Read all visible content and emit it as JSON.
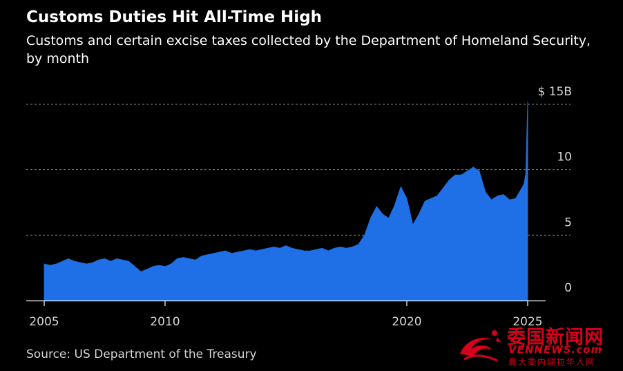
{
  "chart_data": {
    "type": "area",
    "title": "Customs Duties Hit All-Time High",
    "subtitle": "Customs and certain excise taxes collected by the Department of Homeland Security, by month",
    "source": "Source: US Department of the Treasury",
    "xlabel": "",
    "ylabel": "",
    "y_unit": "billion USD",
    "ylim": [
      0,
      15
    ],
    "xlim": [
      2005.0,
      2025.0
    ],
    "y_ticks": [
      {
        "value": 15,
        "label": "$ 15B"
      },
      {
        "value": 10,
        "label": "10"
      },
      {
        "value": 5,
        "label": "5"
      },
      {
        "value": 0,
        "label": "0"
      }
    ],
    "x_ticks": [
      {
        "value": 2005,
        "label": "2005"
      },
      {
        "value": 2010,
        "label": "2010"
      },
      {
        "value": 2020,
        "label": "2020"
      },
      {
        "value": 2025,
        "label": "2025"
      }
    ],
    "grid": true,
    "series": [
      {
        "name": "Customs and certain excise taxes",
        "color": "#1f6fe6",
        "points": [
          [
            2005.0,
            2.8
          ],
          [
            2005.25,
            2.7
          ],
          [
            2005.5,
            2.8
          ],
          [
            2005.75,
            3.0
          ],
          [
            2006.0,
            3.2
          ],
          [
            2006.25,
            3.0
          ],
          [
            2006.5,
            2.9
          ],
          [
            2006.75,
            2.8
          ],
          [
            2007.0,
            2.9
          ],
          [
            2007.25,
            3.1
          ],
          [
            2007.5,
            3.2
          ],
          [
            2007.75,
            3.0
          ],
          [
            2008.0,
            3.2
          ],
          [
            2008.25,
            3.1
          ],
          [
            2008.5,
            3.0
          ],
          [
            2008.75,
            2.6
          ],
          [
            2009.0,
            2.2
          ],
          [
            2009.25,
            2.4
          ],
          [
            2009.5,
            2.6
          ],
          [
            2009.75,
            2.7
          ],
          [
            2010.0,
            2.6
          ],
          [
            2010.25,
            2.8
          ],
          [
            2010.5,
            3.2
          ],
          [
            2010.75,
            3.3
          ],
          [
            2011.0,
            3.2
          ],
          [
            2011.25,
            3.1
          ],
          [
            2011.5,
            3.4
          ],
          [
            2011.75,
            3.5
          ],
          [
            2012.0,
            3.6
          ],
          [
            2012.25,
            3.7
          ],
          [
            2012.5,
            3.8
          ],
          [
            2012.75,
            3.6
          ],
          [
            2013.0,
            3.7
          ],
          [
            2013.25,
            3.8
          ],
          [
            2013.5,
            3.9
          ],
          [
            2013.75,
            3.8
          ],
          [
            2014.0,
            3.9
          ],
          [
            2014.25,
            4.0
          ],
          [
            2014.5,
            4.1
          ],
          [
            2014.75,
            4.0
          ],
          [
            2015.0,
            4.2
          ],
          [
            2015.25,
            4.0
          ],
          [
            2015.5,
            3.9
          ],
          [
            2015.75,
            3.8
          ],
          [
            2016.0,
            3.8
          ],
          [
            2016.25,
            3.9
          ],
          [
            2016.5,
            4.0
          ],
          [
            2016.75,
            3.8
          ],
          [
            2017.0,
            4.0
          ],
          [
            2017.25,
            4.1
          ],
          [
            2017.5,
            4.0
          ],
          [
            2017.75,
            4.1
          ],
          [
            2018.0,
            4.3
          ],
          [
            2018.25,
            5.0
          ],
          [
            2018.5,
            6.3
          ],
          [
            2018.75,
            7.2
          ],
          [
            2019.0,
            6.6
          ],
          [
            2019.25,
            6.3
          ],
          [
            2019.5,
            7.3
          ],
          [
            2019.75,
            8.7
          ],
          [
            2020.0,
            7.8
          ],
          [
            2020.25,
            5.8
          ],
          [
            2020.5,
            6.6
          ],
          [
            2020.75,
            7.6
          ],
          [
            2021.0,
            7.8
          ],
          [
            2021.25,
            8.0
          ],
          [
            2021.5,
            8.6
          ],
          [
            2021.75,
            9.2
          ],
          [
            2022.0,
            9.6
          ],
          [
            2022.25,
            9.6
          ],
          [
            2022.5,
            9.9
          ],
          [
            2022.75,
            10.2
          ],
          [
            2023.0,
            9.9
          ],
          [
            2023.25,
            8.3
          ],
          [
            2023.5,
            7.7
          ],
          [
            2023.75,
            8.0
          ],
          [
            2024.0,
            8.1
          ],
          [
            2024.25,
            7.7
          ],
          [
            2024.5,
            7.8
          ],
          [
            2024.75,
            8.6
          ],
          [
            2024.85,
            8.9
          ],
          [
            2024.92,
            9.7
          ],
          [
            2025.0,
            15.2
          ]
        ]
      }
    ]
  },
  "watermark": {
    "brand_cn": "委国新闻网",
    "brand_en": "VENNEWS.com",
    "tagline_cn": "最大委内瑞拉华人网"
  }
}
